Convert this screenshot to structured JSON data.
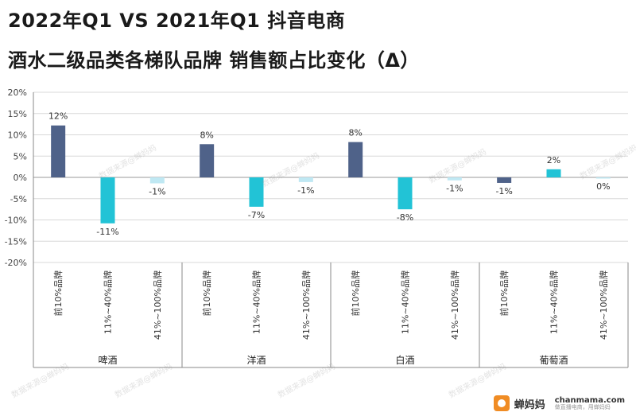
{
  "header": {
    "title_line1": "2022年Q1 VS 2021年Q1 抖音电商",
    "title_line2": "酒水二级品类各梯队品牌 销售额占比变化（Δ）"
  },
  "watermark_text": "数据来源@蝉妈妈",
  "brand": {
    "name": "蝉妈妈",
    "domain": "chanmama.com",
    "slogan": "做直播电商，用蝉妈妈"
  },
  "colors": {
    "top10": "#4f6289",
    "mid": "#22c3d6",
    "low": "#bfe8f3",
    "grid": "#d8d8d8",
    "axis": "#888888"
  },
  "chart_data": {
    "type": "bar",
    "title": "2022年Q1 VS 2021年Q1 抖音电商 酒水二级品类各梯队品牌 销售额占比变化（Δ）",
    "ylim": [
      -20,
      20
    ],
    "yticks": [
      "20%",
      "15%",
      "10%",
      "5%",
      "0%",
      "-5%",
      "-10%",
      "-15%",
      "-20%"
    ],
    "ytick_values": [
      20,
      15,
      10,
      5,
      0,
      -5,
      -10,
      -15,
      -20
    ],
    "groups": [
      {
        "name": "啤酒",
        "bars": [
          {
            "tier": "前10%品牌",
            "value": 12.2,
            "label": "12%"
          },
          {
            "tier": "11%~40%品牌",
            "value": -10.8,
            "label": "-11%"
          },
          {
            "tier": "41%~100%品牌",
            "value": -1.4,
            "label": "-1%"
          }
        ]
      },
      {
        "name": "洋酒",
        "bars": [
          {
            "tier": "前10%品牌",
            "value": 7.8,
            "label": "8%"
          },
          {
            "tier": "11%~40%品牌",
            "value": -6.9,
            "label": "-7%"
          },
          {
            "tier": "41%~100%品牌",
            "value": -1.1,
            "label": "-1%"
          }
        ]
      },
      {
        "name": "白酒",
        "bars": [
          {
            "tier": "前10%品牌",
            "value": 8.3,
            "label": "8%"
          },
          {
            "tier": "11%~40%品牌",
            "value": -7.5,
            "label": "-8%"
          },
          {
            "tier": "41%~100%品牌",
            "value": -0.7,
            "label": "-1%"
          }
        ]
      },
      {
        "name": "葡萄酒",
        "bars": [
          {
            "tier": "前10%品牌",
            "value": -1.3,
            "label": "-1%"
          },
          {
            "tier": "11%~40%品牌",
            "value": 1.9,
            "label": "2%"
          },
          {
            "tier": "41%~100%品牌",
            "value": -0.2,
            "label": "0%"
          }
        ]
      }
    ]
  }
}
